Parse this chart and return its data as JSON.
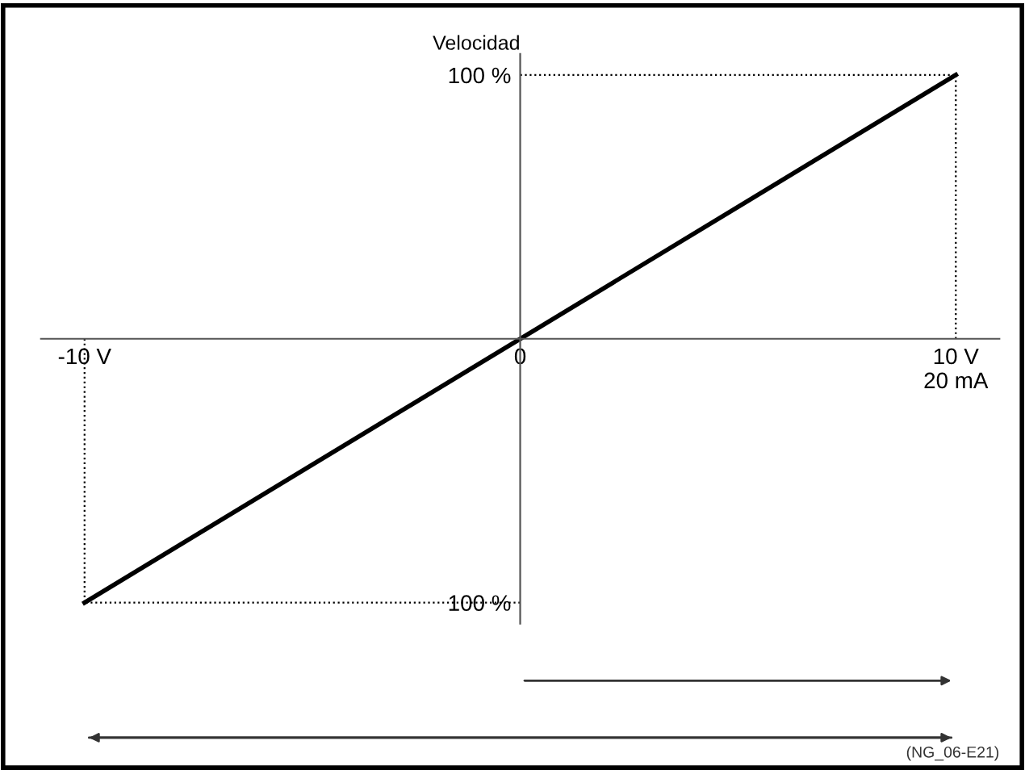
{
  "chart_data": {
    "type": "line",
    "title": "Velocidad",
    "x": [
      -10,
      0,
      10
    ],
    "series": [
      {
        "color": "#000000",
        "values": [
          -100,
          0,
          100
        ]
      }
    ],
    "xlim": [
      -11,
      11
    ],
    "ylim": [
      -108,
      108
    ],
    "xticks": [
      {
        "value": -10,
        "label": "-10 V"
      },
      {
        "value": 0,
        "label": "0"
      },
      {
        "value": 10,
        "label": "10 V\n20 mA"
      }
    ],
    "yticks": [
      {
        "value": -100,
        "label": "100 %"
      },
      {
        "value": 100,
        "label": "100 %"
      }
    ],
    "ref_lines": [
      {
        "axis": "y",
        "value": 100,
        "line_style": "dotted",
        "color": "#000000"
      },
      {
        "axis": "y",
        "value": -100,
        "line_style": "dotted",
        "color": "#000000"
      },
      {
        "axis": "x",
        "value": 10,
        "line_style": "dotted",
        "color": "#000000"
      },
      {
        "axis": "x",
        "value": -10,
        "line_style": "dotted",
        "color": "#000000"
      }
    ],
    "annotations": [
      "(NG_06-E21)"
    ],
    "grid": false,
    "marker": "none",
    "line_style": "solid"
  }
}
